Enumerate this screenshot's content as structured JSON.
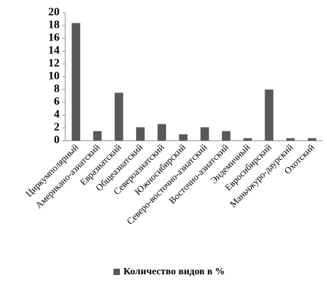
{
  "chart_data": {
    "type": "bar",
    "categories": [
      "Циркумполярный",
      "Американо-азиатский",
      "Евразиатский",
      "Общеазиатский",
      "Североазиатский",
      "Южносибирский",
      "Северо-восточно-азиатский",
      "Восточно-азиатский",
      "Эндемичный",
      "Евросибирский",
      "Маньчжуро-даурский",
      "Охотский"
    ],
    "series": [
      {
        "name": "Количество видов в %",
        "color": "#595959",
        "values": [
          18.4,
          1.5,
          7.5,
          2.1,
          2.6,
          1.0,
          2.1,
          1.5,
          0.4,
          8.0,
          0.4,
          0.4
        ]
      }
    ],
    "ylim": [
      0,
      20
    ],
    "yticks": [
      0,
      2,
      4,
      6,
      8,
      10,
      12,
      14,
      16,
      18,
      20
    ],
    "grid": false,
    "legend": "bottom"
  }
}
